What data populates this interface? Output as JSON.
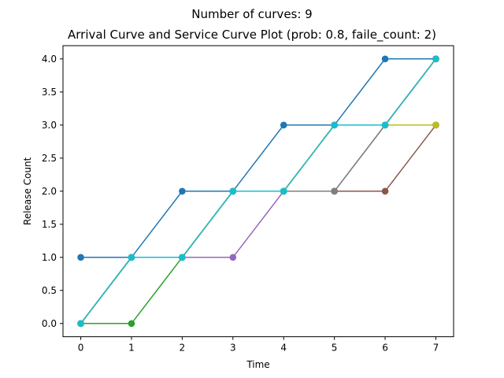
{
  "chart_data": {
    "type": "line",
    "title": "Number of curves: 9",
    "subtitle": "Arrival Curve and Service Curve Plot (prob: 0.8, faile_count: 2)",
    "xlabel": "Time",
    "ylabel": "Release Count",
    "xlim": [
      -0.35,
      7.35
    ],
    "ylim": [
      -0.2,
      4.2
    ],
    "xticks": [
      0,
      1,
      2,
      3,
      4,
      5,
      6,
      7
    ],
    "yticks": [
      0.0,
      0.5,
      1.0,
      1.5,
      2.0,
      2.5,
      3.0,
      3.5,
      4.0
    ],
    "ytick_labels": [
      "0.0",
      "0.5",
      "1.0",
      "1.5",
      "2.0",
      "2.5",
      "3.0",
      "3.5",
      "4.0"
    ],
    "x": [
      0,
      1,
      2,
      3,
      4,
      5,
      6,
      7
    ],
    "grid": false,
    "legend": "none",
    "series": [
      {
        "color": "#1f77b4",
        "values": [
          1,
          1,
          2,
          2,
          3,
          3,
          4,
          4
        ]
      },
      {
        "color": "#ff7f0e",
        "values": [
          0,
          1,
          1,
          2,
          2,
          3,
          3,
          4
        ]
      },
      {
        "color": "#2ca02c",
        "values": [
          0,
          0,
          1,
          2,
          2,
          3,
          3,
          4
        ]
      },
      {
        "color": "#d62728",
        "values": [
          0,
          1,
          1,
          2,
          2,
          3,
          3,
          4
        ]
      },
      {
        "color": "#9467bd",
        "values": [
          0,
          1,
          1,
          1,
          2,
          2,
          3,
          3
        ]
      },
      {
        "color": "#8c564b",
        "values": [
          0,
          1,
          1,
          2,
          2,
          2,
          2,
          3
        ]
      },
      {
        "color": "#7f7f7f",
        "values": [
          0,
          1,
          1,
          2,
          2,
          2,
          3,
          3
        ]
      },
      {
        "color": "#bcbd22",
        "values": [
          0,
          1,
          1,
          2,
          2,
          3,
          3,
          3
        ]
      },
      {
        "color": "#17becf",
        "values": [
          0,
          1,
          1,
          2,
          2,
          3,
          3,
          4
        ]
      }
    ]
  }
}
